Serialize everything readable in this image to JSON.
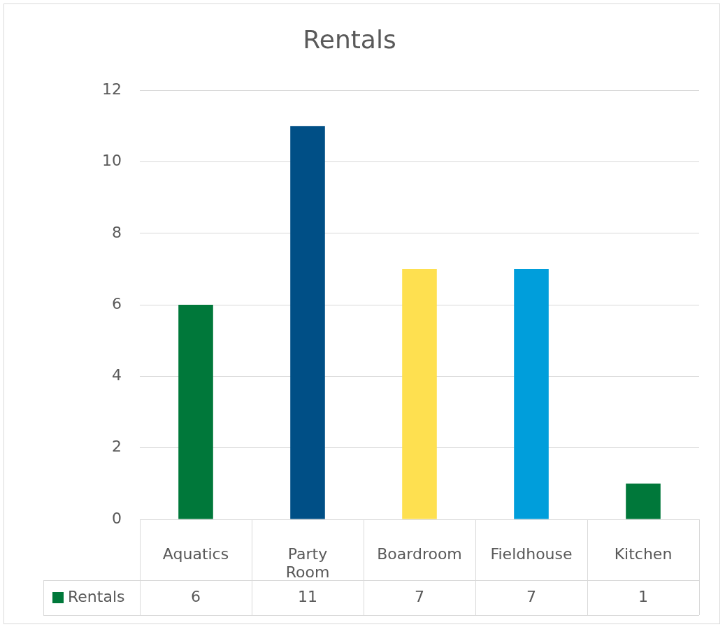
{
  "chart_data": {
    "type": "bar",
    "title": "Rentals",
    "categories": [
      "Aquatics",
      "Party Room",
      "Boardroom",
      "Fieldhouse",
      "Kitchen"
    ],
    "series": [
      {
        "name": "Rentals",
        "color": "#00783a",
        "colors": [
          "#00783a",
          "#004f86",
          "#fee050",
          "#009edb",
          "#00783a"
        ],
        "values": [
          6,
          11,
          7,
          7,
          1
        ]
      }
    ],
    "ylim": [
      0,
      12
    ],
    "yticks": [
      0,
      2,
      4,
      6,
      8,
      10,
      12
    ],
    "grid": "y",
    "legend": "bottom",
    "data_labels": true
  }
}
